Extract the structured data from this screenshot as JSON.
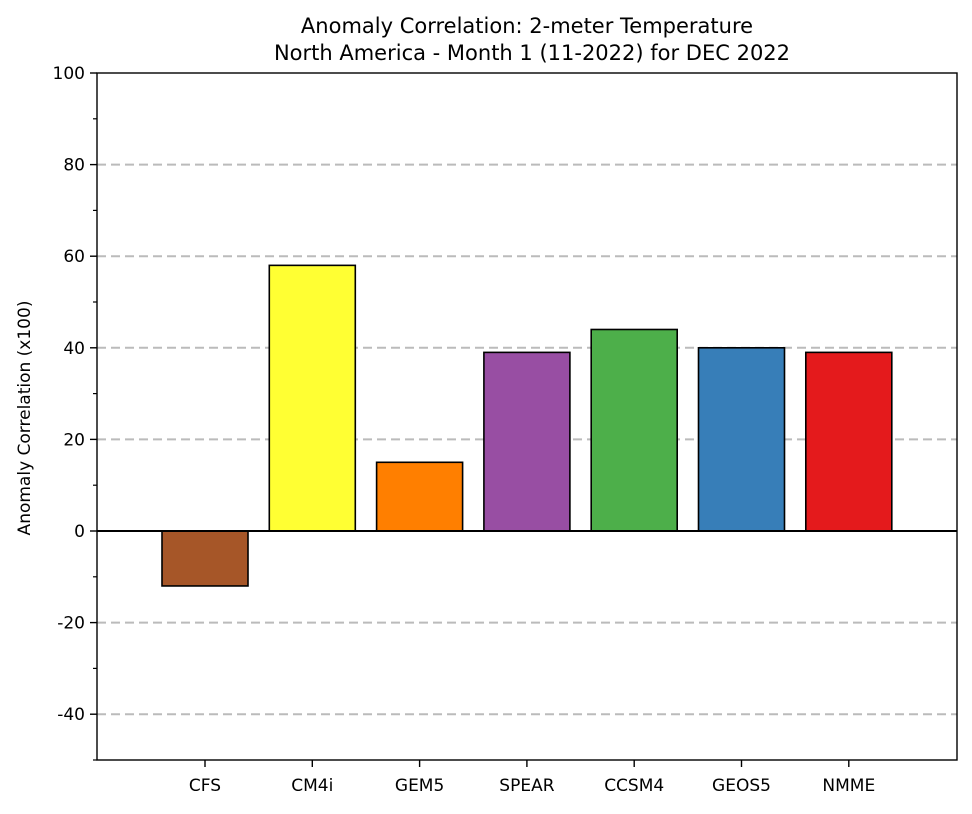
{
  "chart_data": {
    "type": "bar",
    "title": "Anomaly Correlation: 2-meter Temperature",
    "subtitle": "North America - Month 1 (11-2022) for DEC 2022",
    "xlabel": "",
    "ylabel": "Anomaly Correlation (x100)",
    "ylim": [
      -50,
      100
    ],
    "yticks_major": [
      -40,
      -20,
      0,
      20,
      40,
      60,
      80,
      100
    ],
    "ytick_labels": [
      "-40",
      "-20",
      "0",
      "20",
      "40",
      "60",
      "80",
      "100"
    ],
    "yticks_minor": [
      -50,
      -30,
      -10,
      10,
      30,
      50,
      70,
      90
    ],
    "grid": "horizontal dashed at major ticks",
    "zero_line": true,
    "legend": "none",
    "categories": [
      "CFS",
      "CM4i",
      "GEM5",
      "SPEAR",
      "CCSM4",
      "GEOS5",
      "NMME"
    ],
    "values": [
      -12,
      58,
      15,
      39,
      44,
      40,
      39
    ],
    "colors": [
      "#a65628",
      "#ffff33",
      "#ff7f00",
      "#984ea3",
      "#4daf4a",
      "#377eb8",
      "#e41a1c"
    ],
    "grid_color": "#bbbbbb",
    "edge_color": "#000000"
  }
}
